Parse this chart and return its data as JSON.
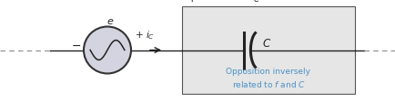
{
  "fig_width": 4.35,
  "fig_height": 1.13,
  "dpi": 100,
  "bg_color": "#ffffff",
  "box_facecolor": "#e6e6e6",
  "box_edgecolor": "#555555",
  "line_color": "#222222",
  "dash_color": "#999999",
  "blue_color": "#4a90c4",
  "circle_fill": "#d4d4e0",
  "circle_edge": "#333333",
  "text_line1": "Opposition inversely",
  "text_line2": "related to $f$ and $C$",
  "label_plus_top": "+",
  "label_minus_top": "−",
  "label_vc": "$v_C$",
  "label_C": "$C$",
  "label_e": "$e$",
  "label_minus_src": "−",
  "label_ic": "$+ \\ i_C$"
}
